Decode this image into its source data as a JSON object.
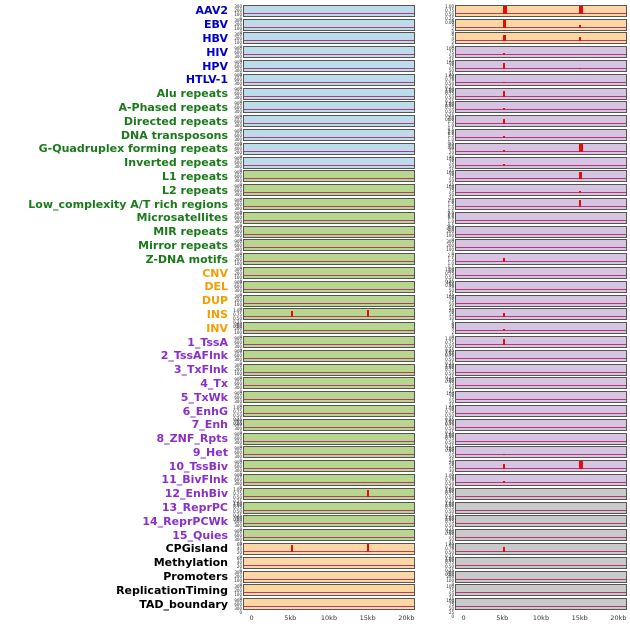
{
  "figure": {
    "label_colors": {
      "blue": "#0000cc",
      "green": "#1a7a1a",
      "orange": "#f59d00",
      "purple": "#8a2fc9",
      "black": "#000000"
    },
    "panel_colors": {
      "lb": "#bcdcec",
      "gn": "#b8d68e",
      "pe": "#fcd7a1",
      "pu": "#d6c4e2",
      "gy": "#c9c9c9"
    },
    "spike_color": "#e80b0b",
    "baseline_color": "#b23a77",
    "tick_sets": {
      "frac": [
        "1.00",
        "0.75",
        "0.50",
        "0.25",
        "0.00"
      ],
      "c1": [
        "100",
        "75",
        "50",
        "25",
        "0"
      ],
      "c2": [
        "2.0",
        "1.5",
        "1.0",
        "0.5",
        "0.0"
      ],
      "c3": [
        "300",
        "200",
        "100",
        "0"
      ],
      "c6": [
        "600",
        "400",
        "200",
        "0"
      ],
      "c9": [
        "900",
        "600",
        "300",
        "0"
      ],
      "c20": [
        "20",
        "15",
        "10",
        "5",
        "0"
      ],
      "c40": [
        "40",
        "30",
        "20",
        "10",
        "0"
      ],
      "c60": [
        "60",
        "40",
        "20",
        "0"
      ],
      "s6": [
        "6",
        "4",
        "2",
        "0"
      ]
    }
  },
  "chart_data": {
    "type": "line",
    "description": "Genomic feature density profiles: 44 feature rows, each with a left and right signal panel over a 0-20kb window; spikes give position in kb and relative height 0-1.",
    "x_axis": {
      "ticks": [
        "0",
        "5kb",
        "10kb",
        "15kb",
        "20kb"
      ],
      "unit": "kb",
      "range": [
        0,
        20
      ]
    },
    "rows": [
      {
        "label": "AAV2",
        "color": "blue",
        "left": {
          "bg": "lb",
          "ticks": "c3",
          "spikes": []
        },
        "right": {
          "bg": "pe",
          "ticks": "frac",
          "spikes": [
            {
              "x": 5,
              "h": 0.9,
              "w": 4
            },
            {
              "x": 15,
              "h": 0.95,
              "w": 4
            }
          ]
        }
      },
      {
        "label": "EBV",
        "color": "blue",
        "left": {
          "bg": "lb",
          "ticks": "c3",
          "spikes": []
        },
        "right": {
          "bg": "pe",
          "ticks": "s6",
          "spikes": [
            {
              "x": 5,
              "h": 0.9,
              "w": 3
            },
            {
              "x": 15,
              "h": 0.3,
              "w": 2
            }
          ]
        }
      },
      {
        "label": "HBV",
        "color": "blue",
        "left": {
          "bg": "lb",
          "ticks": "c3",
          "spikes": []
        },
        "right": {
          "bg": "pe",
          "ticks": "s6",
          "spikes": [
            {
              "x": 5,
              "h": 0.75,
              "w": 3
            },
            {
              "x": 15,
              "h": 0.5,
              "w": 2
            }
          ]
        }
      },
      {
        "label": "HIV",
        "color": "blue",
        "left": {
          "bg": "lb",
          "ticks": "c9",
          "spikes": []
        },
        "right": {
          "bg": "pu",
          "ticks": "c1",
          "spikes": [
            {
              "x": 5,
              "h": 0.25,
              "w": 2
            }
          ]
        }
      },
      {
        "label": "HPV",
        "color": "blue",
        "left": {
          "bg": "lb",
          "ticks": "c9",
          "spikes": []
        },
        "right": {
          "bg": "pu",
          "ticks": "c1",
          "spikes": [
            {
              "x": 5,
              "h": 0.65,
              "w": 2
            },
            {
              "x": 15,
              "h": 0.15,
              "w": 2
            }
          ]
        }
      },
      {
        "label": "HTLV-1",
        "color": "blue",
        "left": {
          "bg": "lb",
          "ticks": "c9",
          "spikes": []
        },
        "right": {
          "bg": "pu",
          "ticks": "frac",
          "spikes": [
            {
              "x": 5,
              "h": 0.15,
              "w": 2
            }
          ]
        }
      },
      {
        "label": "Alu repeats",
        "color": "green",
        "left": {
          "bg": "lb",
          "ticks": "c9",
          "spikes": []
        },
        "right": {
          "bg": "pu",
          "ticks": "frac",
          "spikes": [
            {
              "x": 5,
              "h": 0.6,
              "w": 2
            }
          ]
        }
      },
      {
        "label": "A-Phased repeats",
        "color": "green",
        "left": {
          "bg": "lb",
          "ticks": "c9",
          "spikes": []
        },
        "right": {
          "bg": "pu",
          "ticks": "frac",
          "spikes": [
            {
              "x": 5,
              "h": 0.3,
              "w": 2
            }
          ]
        }
      },
      {
        "label": "Directed repeats",
        "color": "green",
        "left": {
          "bg": "lb",
          "ticks": "c9",
          "spikes": []
        },
        "right": {
          "bg": "pu",
          "ticks": "c2",
          "spikes": [
            {
              "x": 5,
              "h": 0.55,
              "w": 2
            }
          ]
        }
      },
      {
        "label": "DNA transposons",
        "color": "green",
        "left": {
          "bg": "lb",
          "ticks": "c9",
          "spikes": []
        },
        "right": {
          "bg": "pu",
          "ticks": "c2",
          "spikes": [
            {
              "x": 5,
              "h": 0.2,
              "w": 2
            }
          ]
        }
      },
      {
        "label": "G-Quadruplex forming repeats",
        "color": "green",
        "left": {
          "bg": "lb",
          "ticks": "c6",
          "spikes": []
        },
        "right": {
          "bg": "pu",
          "ticks": "c40",
          "spikes": [
            {
              "x": 5,
              "h": 0.25,
              "w": 2
            },
            {
              "x": 15,
              "h": 0.9,
              "w": 4
            }
          ]
        }
      },
      {
        "label": "Inverted repeats",
        "color": "green",
        "left": {
          "bg": "lb",
          "ticks": "c9",
          "spikes": []
        },
        "right": {
          "bg": "pu",
          "ticks": "c1",
          "spikes": [
            {
              "x": 5,
              "h": 0.2,
              "w": 2
            }
          ]
        }
      },
      {
        "label": "L1 repeats",
        "color": "green",
        "left": {
          "bg": "gn",
          "ticks": "c9",
          "spikes": []
        },
        "right": {
          "bg": "pu",
          "ticks": "c1",
          "spikes": [
            {
              "x": 15,
              "h": 0.85,
              "w": 3
            }
          ]
        }
      },
      {
        "label": "L2 repeats",
        "color": "green",
        "left": {
          "bg": "gn",
          "ticks": "c9",
          "spikes": []
        },
        "right": {
          "bg": "pu",
          "ticks": "c1",
          "spikes": [
            {
              "x": 15,
              "h": 0.2,
              "w": 2
            }
          ]
        }
      },
      {
        "label": "Low_complexity A/T rich regions",
        "color": "green",
        "left": {
          "bg": "gn",
          "ticks": "c9",
          "spikes": []
        },
        "right": {
          "bg": "pu",
          "ticks": "c2",
          "spikes": [
            {
              "x": 15,
              "h": 0.75,
              "w": 2
            }
          ]
        }
      },
      {
        "label": "Microsatellites",
        "color": "green",
        "left": {
          "bg": "gn",
          "ticks": "c9",
          "spikes": []
        },
        "right": {
          "bg": "pu",
          "ticks": "c2",
          "spikes": []
        }
      },
      {
        "label": "MIR repeats",
        "color": "green",
        "left": {
          "bg": "gn",
          "ticks": "c9",
          "spikes": []
        },
        "right": {
          "bg": "pu",
          "ticks": "c3",
          "spikes": []
        }
      },
      {
        "label": "Mirror repeats",
        "color": "green",
        "left": {
          "bg": "gn",
          "ticks": "c9",
          "spikes": []
        },
        "right": {
          "bg": "pu",
          "ticks": "c3",
          "spikes": []
        }
      },
      {
        "label": "Z-DNA motifs",
        "color": "green",
        "left": {
          "bg": "gn",
          "ticks": "c3",
          "spikes": []
        },
        "right": {
          "bg": "pu",
          "ticks": "c2",
          "spikes": [
            {
              "x": 5,
              "h": 0.45,
              "w": 2
            }
          ]
        }
      },
      {
        "label": "CNV",
        "color": "orange",
        "left": {
          "bg": "gn",
          "ticks": "c3",
          "spikes": []
        },
        "right": {
          "bg": "pu",
          "ticks": "frac",
          "spikes": []
        }
      },
      {
        "label": "DEL",
        "color": "orange",
        "left": {
          "bg": "gn",
          "ticks": "c9",
          "spikes": []
        },
        "right": {
          "bg": "pu",
          "ticks": "c1",
          "spikes": []
        }
      },
      {
        "label": "DUP",
        "color": "orange",
        "left": {
          "bg": "gn",
          "ticks": "c3",
          "spikes": []
        },
        "right": {
          "bg": "pu",
          "ticks": "c1",
          "spikes": []
        }
      },
      {
        "label": "INS",
        "color": "orange",
        "left": {
          "bg": "gn",
          "ticks": "frac",
          "spikes": [
            {
              "x": 5,
              "h": 0.75,
              "w": 2
            },
            {
              "x": 15,
              "h": 0.85,
              "w": 2
            }
          ]
        },
        "right": {
          "bg": "pu",
          "ticks": "c20",
          "spikes": [
            {
              "x": 5,
              "h": 0.5,
              "w": 2
            }
          ]
        }
      },
      {
        "label": "INV",
        "color": "orange",
        "left": {
          "bg": "gn",
          "ticks": "c3",
          "spikes": []
        },
        "right": {
          "bg": "pu",
          "ticks": "s6",
          "spikes": [
            {
              "x": 5,
              "h": 0.25,
              "w": 2
            }
          ]
        }
      },
      {
        "label": "1_TssA",
        "color": "purple",
        "left": {
          "bg": "gn",
          "ticks": "c9",
          "spikes": []
        },
        "right": {
          "bg": "pu",
          "ticks": "frac",
          "spikes": [
            {
              "x": 5,
              "h": 0.7,
              "w": 2
            }
          ]
        }
      },
      {
        "label": "2_TssAFlnk",
        "color": "purple",
        "left": {
          "bg": "gn",
          "ticks": "c9",
          "spikes": []
        },
        "right": {
          "bg": "pu",
          "ticks": "frac",
          "spikes": []
        }
      },
      {
        "label": "3_TxFlnk",
        "color": "purple",
        "left": {
          "bg": "gn",
          "ticks": "c3",
          "spikes": []
        },
        "right": {
          "bg": "pu",
          "ticks": "frac",
          "spikes": []
        }
      },
      {
        "label": "4_Tx",
        "color": "purple",
        "left": {
          "bg": "gn",
          "ticks": "c9",
          "spikes": []
        },
        "right": {
          "bg": "pu",
          "ticks": "c1",
          "spikes": []
        }
      },
      {
        "label": "5_TxWk",
        "color": "purple",
        "left": {
          "bg": "gn",
          "ticks": "c9",
          "spikes": []
        },
        "right": {
          "bg": "pu",
          "ticks": "c1",
          "spikes": []
        }
      },
      {
        "label": "6_EnhG",
        "color": "purple",
        "left": {
          "bg": "gn",
          "ticks": "frac",
          "spikes": []
        },
        "right": {
          "bg": "pu",
          "ticks": "frac",
          "spikes": []
        }
      },
      {
        "label": "7_Enh",
        "color": "purple",
        "left": {
          "bg": "gn",
          "ticks": "c9",
          "spikes": []
        },
        "right": {
          "bg": "pu",
          "ticks": "frac",
          "spikes": []
        }
      },
      {
        "label": "8_ZNF_Rpts",
        "color": "purple",
        "left": {
          "bg": "gn",
          "ticks": "c9",
          "spikes": []
        },
        "right": {
          "bg": "pu",
          "ticks": "frac",
          "spikes": []
        }
      },
      {
        "label": "9_Het",
        "color": "purple",
        "left": {
          "bg": "gn",
          "ticks": "c9",
          "spikes": []
        },
        "right": {
          "bg": "pu",
          "ticks": "c1",
          "spikes": [
            {
              "x": 5,
              "h": 0.15,
              "w": 2
            }
          ]
        }
      },
      {
        "label": "10_TssBiv",
        "color": "purple",
        "left": {
          "bg": "gn",
          "ticks": "c9",
          "spikes": []
        },
        "right": {
          "bg": "pu",
          "ticks": "c20",
          "spikes": [
            {
              "x": 5,
              "h": 0.55,
              "w": 2
            },
            {
              "x": 15,
              "h": 0.9,
              "w": 4
            }
          ]
        }
      },
      {
        "label": "11_BivFlnk",
        "color": "purple",
        "left": {
          "bg": "gn",
          "ticks": "c9",
          "spikes": []
        },
        "right": {
          "bg": "pu",
          "ticks": "frac",
          "spikes": [
            {
              "x": 5,
              "h": 0.2,
              "w": 2
            }
          ]
        }
      },
      {
        "label": "12_EnhBiv",
        "color": "purple",
        "left": {
          "bg": "gn",
          "ticks": "frac",
          "spikes": [
            {
              "x": 15,
              "h": 0.8,
              "w": 2
            }
          ]
        },
        "right": {
          "bg": "gy",
          "ticks": "frac",
          "spikes": []
        }
      },
      {
        "label": "13_ReprPC",
        "color": "purple",
        "left": {
          "bg": "gn",
          "ticks": "frac",
          "spikes": []
        },
        "right": {
          "bg": "gy",
          "ticks": "frac",
          "spikes": []
        }
      },
      {
        "label": "14_ReprPCWk",
        "color": "purple",
        "left": {
          "bg": "gn",
          "ticks": "c9",
          "spikes": []
        },
        "right": {
          "bg": "gy",
          "ticks": "frac",
          "spikes": []
        }
      },
      {
        "label": "15_Quies",
        "color": "purple",
        "left": {
          "bg": "gn",
          "ticks": "c9",
          "spikes": []
        },
        "right": {
          "bg": "gy",
          "ticks": "c1",
          "spikes": []
        }
      },
      {
        "label": "CPGisland",
        "color": "black",
        "left": {
          "bg": "pe",
          "ticks": "c60",
          "spikes": [
            {
              "x": 5,
              "h": 0.8,
              "w": 2
            },
            {
              "x": 15,
              "h": 0.9,
              "w": 2
            }
          ]
        },
        "right": {
          "bg": "gy",
          "ticks": "frac",
          "spikes": [
            {
              "x": 5,
              "h": 0.6,
              "w": 2
            }
          ]
        }
      },
      {
        "label": "Methylation",
        "color": "black",
        "left": {
          "bg": "pe",
          "ticks": "c60",
          "spikes": []
        },
        "right": {
          "bg": "gy",
          "ticks": "frac",
          "spikes": []
        }
      },
      {
        "label": "Promoters",
        "color": "black",
        "left": {
          "bg": "pe",
          "ticks": "c3",
          "spikes": []
        },
        "right": {
          "bg": "gy",
          "ticks": "c3",
          "spikes": []
        }
      },
      {
        "label": "ReplicationTiming",
        "color": "black",
        "left": {
          "bg": "pe",
          "ticks": "c3",
          "spikes": []
        },
        "right": {
          "bg": "gy",
          "ticks": "c1",
          "spikes": []
        }
      },
      {
        "label": "TAD_boundary",
        "color": "black",
        "left": {
          "bg": "pe",
          "ticks": "c9",
          "spikes": []
        },
        "right": {
          "bg": "gy",
          "ticks": "c1",
          "spikes": []
        }
      }
    ]
  }
}
